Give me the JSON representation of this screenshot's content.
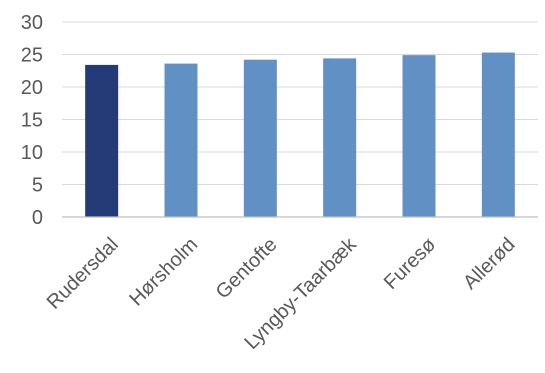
{
  "chart_data": {
    "type": "bar",
    "categories": [
      "Rudersdal",
      "Hørsholm",
      "Gentofte",
      "Lyngby-Taarbæk",
      "Furesø",
      "Allerød"
    ],
    "values": [
      23.4,
      23.6,
      24.2,
      24.4,
      24.9,
      25.3
    ],
    "colors": [
      "#253b77",
      "#6190c5",
      "#6190c5",
      "#6190c5",
      "#6190c5",
      "#6190c5"
    ],
    "title": "",
    "xlabel": "",
    "ylabel": "",
    "ylim": [
      0,
      30
    ],
    "yticks": [
      "0",
      "5",
      "10",
      "15",
      "20",
      "25",
      "30"
    ],
    "grid": true,
    "legend": "none"
  }
}
